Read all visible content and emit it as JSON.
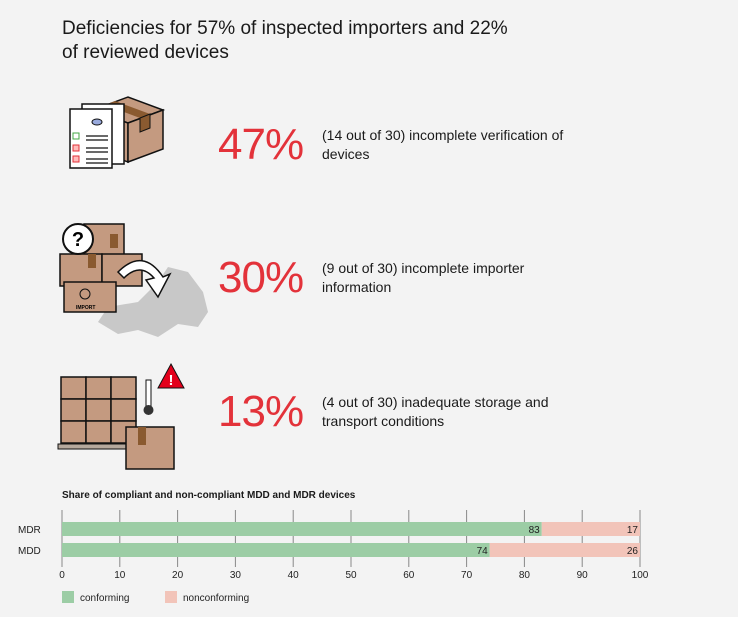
{
  "title": "Deficiencies for 57% of inspected importers and 22% of reviewed devices",
  "stats": [
    {
      "percent": "47%",
      "description": "(14 out of 30) incomplete verification of devices",
      "icon": "documents-box-icon"
    },
    {
      "percent": "30%",
      "description": "(9 out of 30) incomplete importer information",
      "icon": "import-boxes-icon"
    },
    {
      "percent": "13%",
      "description": "(4 out of 30) inadequate storage and transport conditions",
      "icon": "storage-warning-icon"
    }
  ],
  "icon_lettering": {
    "import": "IMPORT"
  },
  "colors": {
    "accent": "#e3323a",
    "conforming": "#9ccda5",
    "nonconforming": "#f2c4b9",
    "box": "#c49a80",
    "tape": "#8a5a30"
  },
  "chart_data": {
    "type": "bar",
    "orientation": "horizontal-stacked",
    "title": "Share of compliant and non-compliant MDD and MDR devices",
    "categories": [
      "MDR",
      "MDD"
    ],
    "series": [
      {
        "name": "conforming",
        "values": [
          83,
          74
        ]
      },
      {
        "name": "nonconforming",
        "values": [
          17,
          26
        ]
      }
    ],
    "xlim": [
      0,
      100
    ],
    "xticks": [
      0,
      10,
      20,
      30,
      40,
      50,
      60,
      70,
      80,
      90,
      100
    ],
    "grid": true,
    "legend": "bottom-left"
  }
}
